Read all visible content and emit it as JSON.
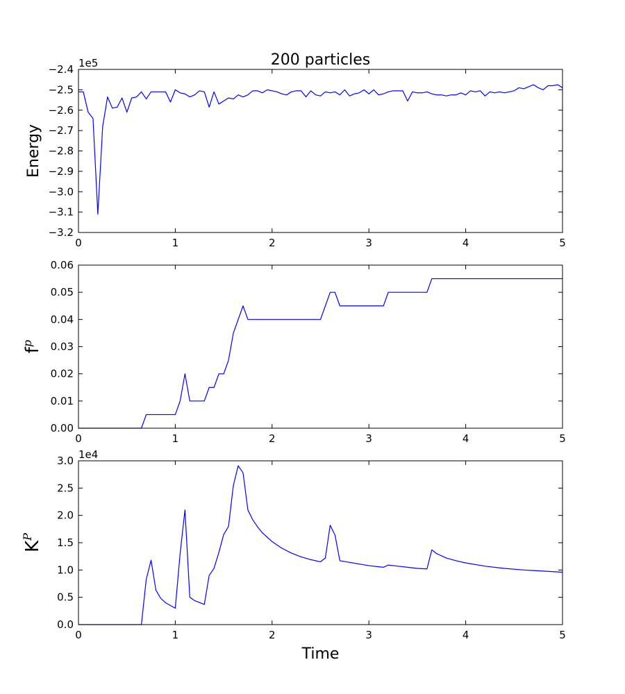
{
  "chart_data": [
    {
      "type": "line",
      "title": "200 particles",
      "xlabel": "",
      "ylabel": "Energy",
      "y_offset_label": "1e5",
      "xlim": [
        0,
        5
      ],
      "ylim": [
        -3.2,
        -2.4
      ],
      "xticks": [
        0,
        1,
        2,
        3,
        4,
        5
      ],
      "xtick_labels": [
        "0",
        "1",
        "2",
        "3",
        "4",
        "5"
      ],
      "yticks": [
        -3.2,
        -3.1,
        -3.0,
        -2.9,
        -2.8,
        -2.7,
        -2.6,
        -2.5,
        -2.4
      ],
      "ytick_labels": [
        "−3.2",
        "−3.1",
        "−3.0",
        "−2.9",
        "−2.8",
        "−2.7",
        "−2.6",
        "−2.5",
        "−2.4"
      ],
      "grid": false,
      "series": [
        {
          "color": "#0000ff",
          "x": [
            0,
            0.05,
            0.1,
            0.15,
            0.2,
            0.25,
            0.3,
            0.35,
            0.4,
            0.45,
            0.5,
            0.55,
            0.6,
            0.65,
            0.7,
            0.75,
            0.8,
            0.85,
            0.9,
            0.95,
            1.0,
            1.05,
            1.1,
            1.15,
            1.2,
            1.25,
            1.3,
            1.35,
            1.4,
            1.45,
            1.5,
            1.55,
            1.6,
            1.65,
            1.7,
            1.75,
            1.8,
            1.85,
            1.9,
            1.95,
            2.0,
            2.05,
            2.1,
            2.15,
            2.2,
            2.25,
            2.3,
            2.35,
            2.4,
            2.45,
            2.5,
            2.55,
            2.6,
            2.65,
            2.7,
            2.75,
            2.8,
            2.85,
            2.9,
            2.95,
            3.0,
            3.05,
            3.1,
            3.15,
            3.2,
            3.25,
            3.3,
            3.35,
            3.4,
            3.45,
            3.5,
            3.55,
            3.6,
            3.65,
            3.7,
            3.75,
            3.8,
            3.85,
            3.9,
            3.95,
            4.0,
            4.05,
            4.1,
            4.15,
            4.2,
            4.25,
            4.3,
            4.35,
            4.4,
            4.45,
            4.5,
            4.55,
            4.6,
            4.65,
            4.7,
            4.75,
            4.8,
            4.85,
            4.9,
            4.95,
            5.0
          ],
          "y": [
            -2.51,
            -2.51,
            -2.61,
            -2.64,
            -3.11,
            -2.68,
            -2.535,
            -2.59,
            -2.585,
            -2.54,
            -2.61,
            -2.54,
            -2.535,
            -2.51,
            -2.545,
            -2.51,
            -2.51,
            -2.51,
            -2.51,
            -2.56,
            -2.5,
            -2.515,
            -2.52,
            -2.535,
            -2.525,
            -2.505,
            -2.51,
            -2.585,
            -2.51,
            -2.57,
            -2.555,
            -2.54,
            -2.545,
            -2.525,
            -2.535,
            -2.525,
            -2.505,
            -2.505,
            -2.515,
            -2.5,
            -2.505,
            -2.51,
            -2.52,
            -2.525,
            -2.51,
            -2.505,
            -2.505,
            -2.535,
            -2.505,
            -2.525,
            -2.53,
            -2.51,
            -2.515,
            -2.51,
            -2.525,
            -2.5,
            -2.53,
            -2.52,
            -2.515,
            -2.5,
            -2.52,
            -2.5,
            -2.525,
            -2.52,
            -2.51,
            -2.505,
            -2.505,
            -2.505,
            -2.555,
            -2.51,
            -2.515,
            -2.515,
            -2.51,
            -2.52,
            -2.525,
            -2.525,
            -2.53,
            -2.525,
            -2.525,
            -2.515,
            -2.525,
            -2.505,
            -2.51,
            -2.505,
            -2.53,
            -2.51,
            -2.515,
            -2.51,
            -2.515,
            -2.51,
            -2.505,
            -2.49,
            -2.495,
            -2.485,
            -2.475,
            -2.49,
            -2.5,
            -2.48,
            -2.48,
            -2.475,
            -2.49
          ]
        }
      ]
    },
    {
      "type": "line",
      "title": "",
      "xlabel": "",
      "ylabel": "fp",
      "ylabel_base": "f",
      "ylabel_sup": "p",
      "xlim": [
        0,
        5
      ],
      "ylim": [
        0,
        0.06
      ],
      "xticks": [
        0,
        1,
        2,
        3,
        4,
        5
      ],
      "xtick_labels": [
        "0",
        "1",
        "2",
        "3",
        "4",
        "5"
      ],
      "yticks": [
        0,
        0.01,
        0.02,
        0.03,
        0.04,
        0.05,
        0.06
      ],
      "ytick_labels": [
        "0.00",
        "0.01",
        "0.02",
        "0.03",
        "0.04",
        "0.05",
        "0.06"
      ],
      "grid": false,
      "series": [
        {
          "color": "#0000ff",
          "x": [
            0,
            0.65,
            0.7,
            1.0,
            1.05,
            1.1,
            1.15,
            1.3,
            1.35,
            1.4,
            1.45,
            1.5,
            1.55,
            1.6,
            1.7,
            1.75,
            2.5,
            2.6,
            2.65,
            2.7,
            3.15,
            3.2,
            3.6,
            3.65,
            5.0
          ],
          "y": [
            0,
            0,
            0.005,
            0.005,
            0.01,
            0.02,
            0.01,
            0.01,
            0.015,
            0.015,
            0.02,
            0.02,
            0.025,
            0.035,
            0.045,
            0.04,
            0.04,
            0.05,
            0.05,
            0.045,
            0.045,
            0.05,
            0.05,
            0.055,
            0.055
          ]
        }
      ]
    },
    {
      "type": "line",
      "title": "",
      "xlabel": "Time",
      "ylabel": "KP",
      "ylabel_base": "K",
      "ylabel_sup": "P",
      "y_offset_label": "1e4",
      "xlim": [
        0,
        5
      ],
      "ylim": [
        0,
        3.0
      ],
      "xticks": [
        0,
        1,
        2,
        3,
        4,
        5
      ],
      "xtick_labels": [
        "0",
        "1",
        "2",
        "3",
        "4",
        "5"
      ],
      "yticks": [
        0,
        0.5,
        1.0,
        1.5,
        2.0,
        2.5,
        3.0
      ],
      "ytick_labels": [
        "0.0",
        "0.5",
        "1.0",
        "1.5",
        "2.0",
        "2.5",
        "3.0"
      ],
      "grid": false,
      "series": [
        {
          "color": "#0000ff",
          "x": [
            0,
            0.65,
            0.7,
            0.75,
            0.8,
            0.85,
            0.9,
            0.95,
            1.0,
            1.05,
            1.1,
            1.15,
            1.2,
            1.3,
            1.35,
            1.4,
            1.45,
            1.5,
            1.55,
            1.6,
            1.65,
            1.7,
            1.75,
            1.8,
            1.85,
            1.9,
            1.95,
            2.0,
            2.1,
            2.2,
            2.3,
            2.4,
            2.5,
            2.55,
            2.6,
            2.65,
            2.7,
            2.8,
            2.9,
            3.0,
            3.1,
            3.15,
            3.2,
            3.3,
            3.4,
            3.5,
            3.6,
            3.65,
            3.7,
            3.8,
            3.9,
            4.0,
            4.2,
            4.4,
            4.6,
            4.8,
            5.0
          ],
          "y": [
            0,
            0,
            0.83,
            1.18,
            0.63,
            0.48,
            0.4,
            0.35,
            0.3,
            1.3,
            2.1,
            0.5,
            0.44,
            0.37,
            0.9,
            1.03,
            1.32,
            1.65,
            1.8,
            2.55,
            2.91,
            2.78,
            2.1,
            1.92,
            1.79,
            1.68,
            1.6,
            1.52,
            1.4,
            1.31,
            1.24,
            1.19,
            1.15,
            1.22,
            1.82,
            1.64,
            1.17,
            1.14,
            1.11,
            1.08,
            1.06,
            1.05,
            1.09,
            1.07,
            1.05,
            1.03,
            1.02,
            1.37,
            1.3,
            1.22,
            1.17,
            1.13,
            1.07,
            1.03,
            1.0,
            0.98,
            0.96
          ]
        }
      ]
    }
  ]
}
